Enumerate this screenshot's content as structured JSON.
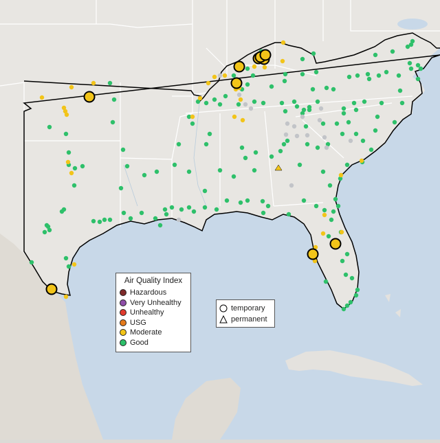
{
  "legend": {
    "title": "Air Quality Index",
    "categories": [
      {
        "label": "Hazardous",
        "color": "#7e2a2a"
      },
      {
        "label": "Very Unhealthy",
        "color": "#8f4fa8"
      },
      {
        "label": "Unhealthy",
        "color": "#e03b2e"
      },
      {
        "label": "USG",
        "color": "#e47a1b"
      },
      {
        "label": "Moderate",
        "color": "#f2c419"
      },
      {
        "label": "Good",
        "color": "#2ec06a"
      }
    ],
    "types": [
      {
        "label": "temporary",
        "icon": "circle-outline-icon"
      },
      {
        "label": "permanent",
        "icon": "triangle-outline-icon"
      }
    ]
  },
  "colors": {
    "water": "#c8d8e8",
    "land_us": "#e8e6e2",
    "land_other": "#dcdad6",
    "state_border": "#ffffff",
    "region_outline": "#000000",
    "good": "#2ec06a",
    "moderate": "#f2c419",
    "no_data": "#c2c4c8",
    "terrain_mexico": "#e0dcd6"
  },
  "large_markers": [
    {
      "aqi": "Moderate"
    },
    {
      "aqi": "Moderate"
    },
    {
      "aqi": "Moderate"
    },
    {
      "aqi": "Moderate"
    },
    {
      "aqi": "Moderate"
    },
    {
      "aqi": "Moderate"
    },
    {
      "aqi": "Moderate"
    },
    {
      "aqi": "Moderate"
    },
    {
      "aqi": "Moderate"
    },
    {
      "aqi": "Moderate"
    }
  ]
}
